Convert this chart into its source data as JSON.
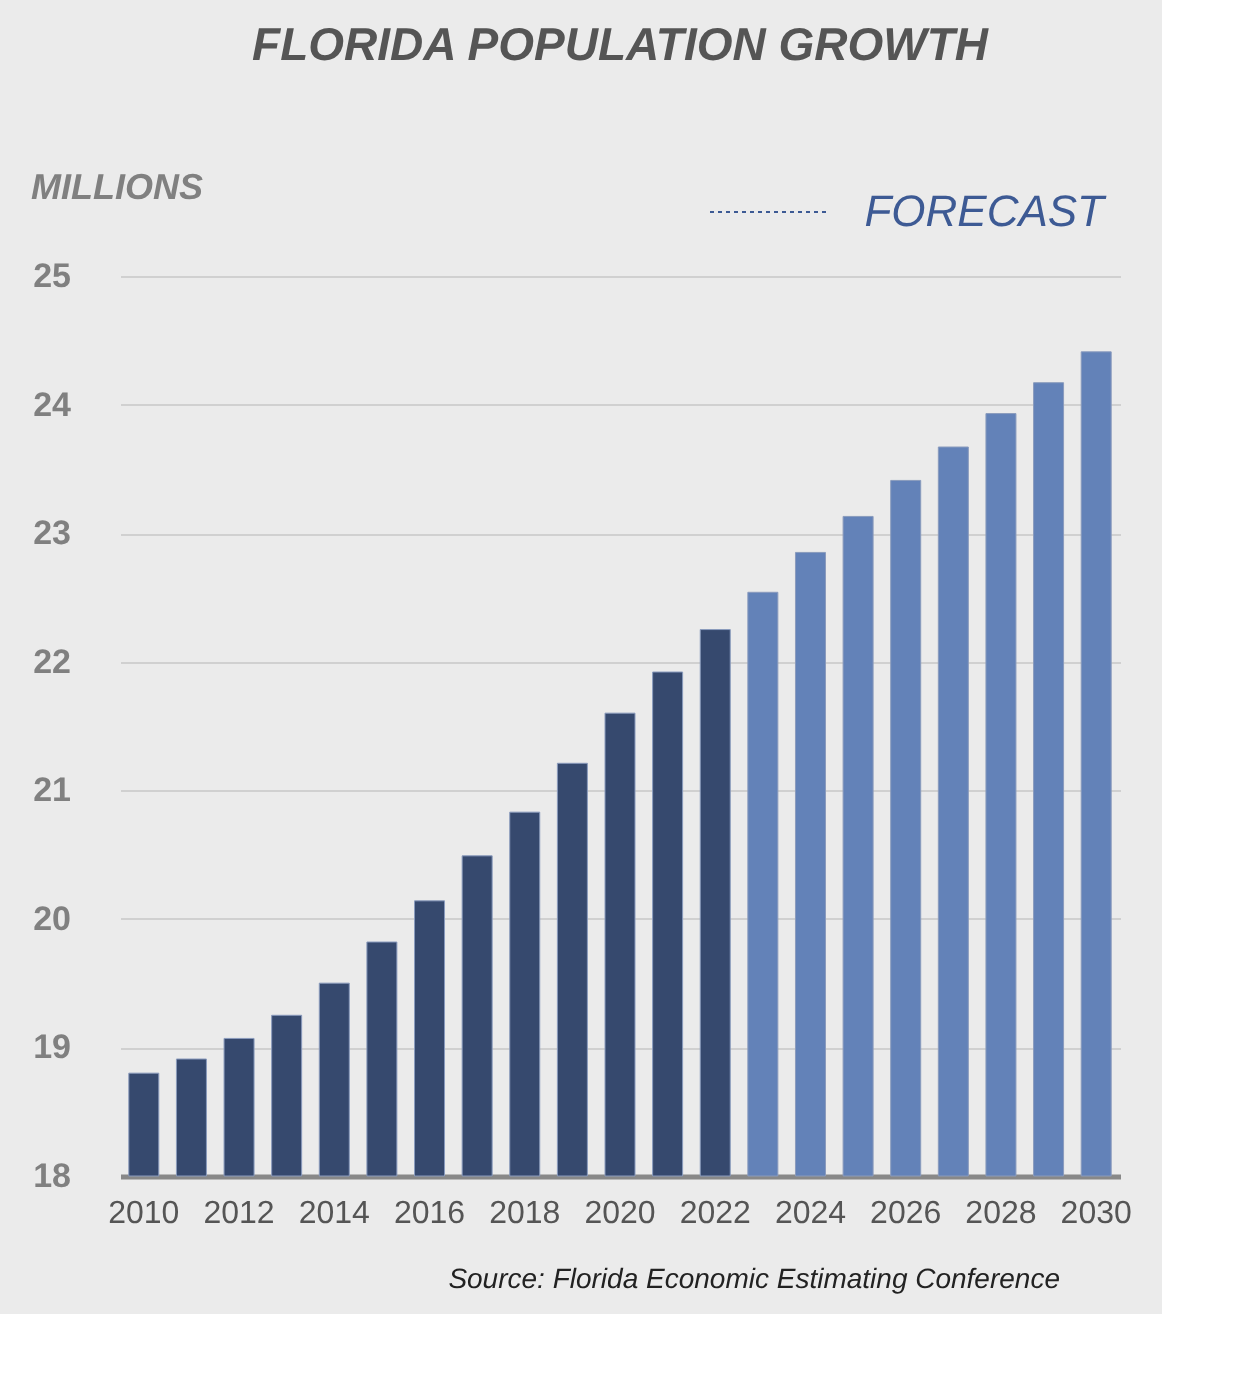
{
  "chart_data": {
    "type": "bar",
    "title": "FLORIDA POPULATION GROWTH",
    "ylabel": "MILLIONS",
    "categories": [
      "2010",
      null,
      "2012",
      null,
      "2014",
      null,
      "2016",
      null,
      "2018",
      null,
      "2020",
      null,
      "2022",
      null,
      "2024",
      null,
      "2026",
      null,
      "2028",
      null,
      "2030"
    ],
    "values": [
      18.8,
      18.91,
      19.07,
      19.25,
      19.5,
      19.82,
      20.14,
      20.49,
      20.83,
      21.21,
      21.6,
      21.92,
      22.25,
      22.54,
      22.85,
      23.13,
      23.41,
      23.67,
      23.93,
      24.17,
      24.41
    ],
    "colors": [
      "#36496e",
      "#36496e",
      "#36496e",
      "#36496e",
      "#36496e",
      "#36496e",
      "#36496e",
      "#36496e",
      "#36496e",
      "#36496e",
      "#36496e",
      "#36496e",
      "#36496e",
      "#6382b8",
      "#6382b8",
      "#6382b8",
      "#6382b8",
      "#6382b8",
      "#6382b8",
      "#6382b8",
      "#6382b8"
    ],
    "ylim": [
      18,
      25
    ],
    "yticks": [
      18,
      19,
      20,
      21,
      22,
      23,
      24,
      25
    ],
    "grid": "y",
    "annotations": [
      "FORECAST",
      "Source:  Florida Economic Estimating Conference"
    ]
  }
}
